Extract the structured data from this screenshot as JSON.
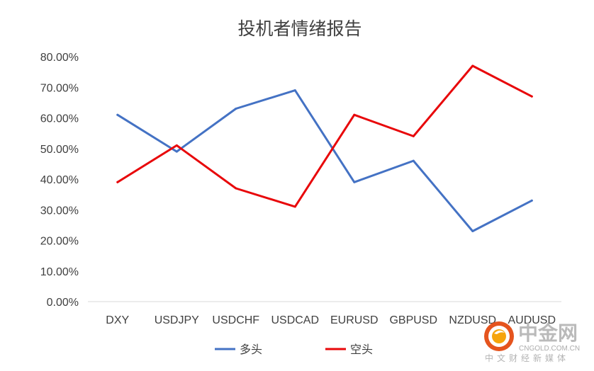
{
  "chart_data": {
    "type": "line",
    "title": "投机者情绪报告",
    "categories": [
      "DXY",
      "USDJPY",
      "USDCHF",
      "USDCAD",
      "EURUSD",
      "GBPUSD",
      "NZDUSD",
      "AUDUSD"
    ],
    "ylim": [
      0,
      80
    ],
    "y_ticks": [
      "0.00%",
      "10.00%",
      "20.00%",
      "30.00%",
      "40.00%",
      "50.00%",
      "60.00%",
      "70.00%",
      "80.00%"
    ],
    "grid": false,
    "legend_position": "bottom",
    "series": [
      {
        "name": "多头",
        "color": "#4472C4",
        "values": [
          61,
          49,
          63,
          69,
          39,
          46,
          23,
          33
        ]
      },
      {
        "name": "空头",
        "color": "#E8070A",
        "values": [
          39,
          51,
          37,
          31,
          61,
          54,
          77,
          67
        ]
      }
    ]
  },
  "watermark": {
    "brand": "中金网",
    "url": "CNGOLD.COM.CN",
    "tagline": "中文财经新媒体",
    "logo": "cngold-logo-icon"
  }
}
